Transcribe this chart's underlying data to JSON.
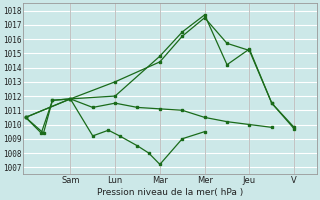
{
  "xlabel": "Pression niveau de la mer( hPa )",
  "bg_color": "#cce8e8",
  "grid_color": "#ffffff",
  "line_color": "#1a6b1a",
  "yticks": [
    1007,
    1008,
    1009,
    1010,
    1011,
    1012,
    1013,
    1014,
    1015,
    1016,
    1017,
    1018
  ],
  "ylim": [
    1006.5,
    1018.5
  ],
  "day_labels": [
    "Sam",
    "Lun",
    "Mar",
    "Mer",
    "Jeu",
    "V"
  ],
  "day_x": [
    2.0,
    4.0,
    6.0,
    8.0,
    10.0,
    12.0
  ],
  "xlim": [
    -0.1,
    13.0
  ],
  "lines": [
    {
      "x": [
        0.0,
        0.8,
        1.2,
        2.0,
        3.0,
        4.0,
        5.0,
        6.0,
        7.0,
        8.0,
        9.0,
        10.0,
        11.0
      ],
      "y": [
        1010.5,
        1009.4,
        1011.7,
        1011.8,
        1011.2,
        1011.5,
        1011.2,
        1011.1,
        1011.0,
        1010.5,
        1010.2,
        1010.0,
        1009.8
      ]
    },
    {
      "x": [
        0.0,
        0.7,
        1.2,
        2.0,
        3.0,
        3.7,
        4.2,
        5.0,
        5.5,
        6.0,
        7.0,
        8.0
      ],
      "y": [
        1010.5,
        1009.4,
        1011.7,
        1011.8,
        1009.2,
        1009.6,
        1009.2,
        1008.5,
        1008.0,
        1007.2,
        1009.0,
        1009.5
      ]
    },
    {
      "x": [
        0.0,
        2.0,
        4.0,
        6.0,
        7.0,
        8.0,
        9.0,
        10.0,
        11.0,
        12.0
      ],
      "y": [
        1010.5,
        1011.8,
        1013.0,
        1014.4,
        1016.2,
        1017.5,
        1015.7,
        1015.2,
        1011.5,
        1009.7
      ]
    },
    {
      "x": [
        0.0,
        2.0,
        4.0,
        6.0,
        7.0,
        8.0,
        9.0,
        10.0,
        11.0,
        12.0
      ],
      "y": [
        1010.5,
        1011.8,
        1012.0,
        1014.8,
        1016.5,
        1017.7,
        1014.2,
        1015.3,
        1011.5,
        1009.8
      ]
    }
  ]
}
